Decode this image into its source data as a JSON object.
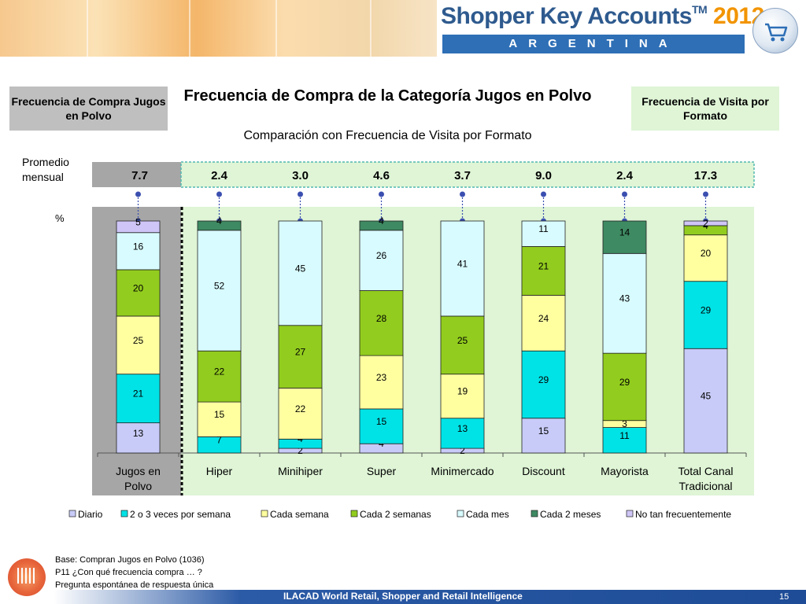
{
  "header": {
    "brand_main": "Shopper Key Accounts",
    "brand_tm": "TM",
    "brand_year": "2012",
    "country": "ARGENTINA"
  },
  "left_box": "Frecuencia de Compra Jugos en Polvo",
  "right_box": "Frecuencia de Visita por Formato",
  "chart_data": {
    "type": "bar",
    "stacked": true,
    "percent": true,
    "title": "Frecuencia de Compra de la Categoría Jugos en Polvo",
    "subtitle": "Comparación con Frecuencia de Visita por Formato",
    "ylabel": "%",
    "ylim": [
      0,
      100
    ],
    "promedio_label": "Promedio mensual",
    "categories": [
      "Jugos en Polvo",
      "Hiper",
      "Minihiper",
      "Super",
      "Minimercado",
      "Discount",
      "Mayorista",
      "Total Canal Tradicional"
    ],
    "category_lines": [
      [
        "Jugos en",
        "Polvo"
      ],
      [
        "Hiper"
      ],
      [
        "Minihiper"
      ],
      [
        "Super"
      ],
      [
        "Minimercado"
      ],
      [
        "Discount"
      ],
      [
        "Mayorista"
      ],
      [
        "Total Canal",
        "Tradicional"
      ]
    ],
    "promedio_mensual": [
      "7.7",
      "2.4",
      "3.0",
      "4.6",
      "3.7",
      "9.0",
      "2.4",
      "17.3"
    ],
    "series": [
      {
        "name": "Diario",
        "color": "#c8cbf7",
        "values": [
          13,
          null,
          2,
          4,
          2,
          15,
          null,
          45
        ]
      },
      {
        "name": "2 o 3 veces por semana",
        "color": "#00e3e6",
        "values": [
          21,
          7,
          4,
          15,
          13,
          29,
          11,
          29
        ]
      },
      {
        "name": "Cada semana",
        "color": "#ffffa0",
        "values": [
          25,
          15,
          22,
          23,
          19,
          24,
          3,
          20
        ]
      },
      {
        "name": "Cada 2 semanas",
        "color": "#92cc1e",
        "values": [
          20,
          22,
          27,
          28,
          25,
          21,
          29,
          4
        ]
      },
      {
        "name": "Cada mes",
        "color": "#d8fbff",
        "values": [
          16,
          52,
          45,
          26,
          41,
          11,
          43,
          null
        ]
      },
      {
        "name": "Cada 2 meses",
        "color": "#3e8a62",
        "values": [
          null,
          4,
          null,
          4,
          null,
          null,
          14,
          null
        ]
      },
      {
        "name": "No tan frecuentemente",
        "color": "#cfc6f7",
        "values": [
          5,
          null,
          null,
          null,
          null,
          null,
          null,
          2
        ]
      }
    ],
    "grid": false,
    "legend_position": "bottom"
  },
  "footnote": [
    "Base: Compran Jugos en Polvo (1036)",
    "P11 ¿Con qué frecuencia compra … ?",
    "Pregunta espontánea de respuesta única"
  ],
  "footer": {
    "text": "ILACAD World Retail, Shopper and Retail Intelligence",
    "page": "15"
  }
}
